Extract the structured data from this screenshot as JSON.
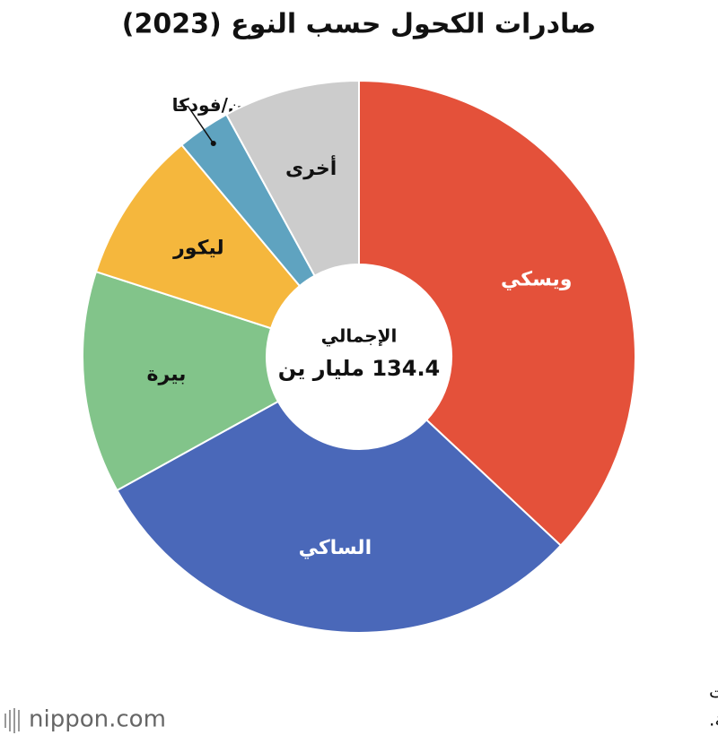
{
  "chart_data": {
    "type": "donut",
    "title": "صادرات الكحول حسب النوع (2023)",
    "categories": [
      "ويسكي",
      "الساكي",
      "بيرة",
      "ليكور",
      "جين/فودكا",
      "أخرى"
    ],
    "values": [
      49.7,
      40.3,
      17.5,
      12.0,
      4.2,
      10.7
    ],
    "colors": [
      "#e4513a",
      "#4a68b9",
      "#82c48a",
      "#f5b73d",
      "#5fa3c0",
      "#cccccc"
    ],
    "center_label": "الإجمالي",
    "center_value": "134.4 مليار ين"
  },
  "source": [
    "تم إعداد البيانات بواسطة Nippon.com وفقًا للإحصاءات",
    "التجارية التي نشرتها وكالة الضرائب الوطنية."
  ],
  "logo": "nippon.com"
}
